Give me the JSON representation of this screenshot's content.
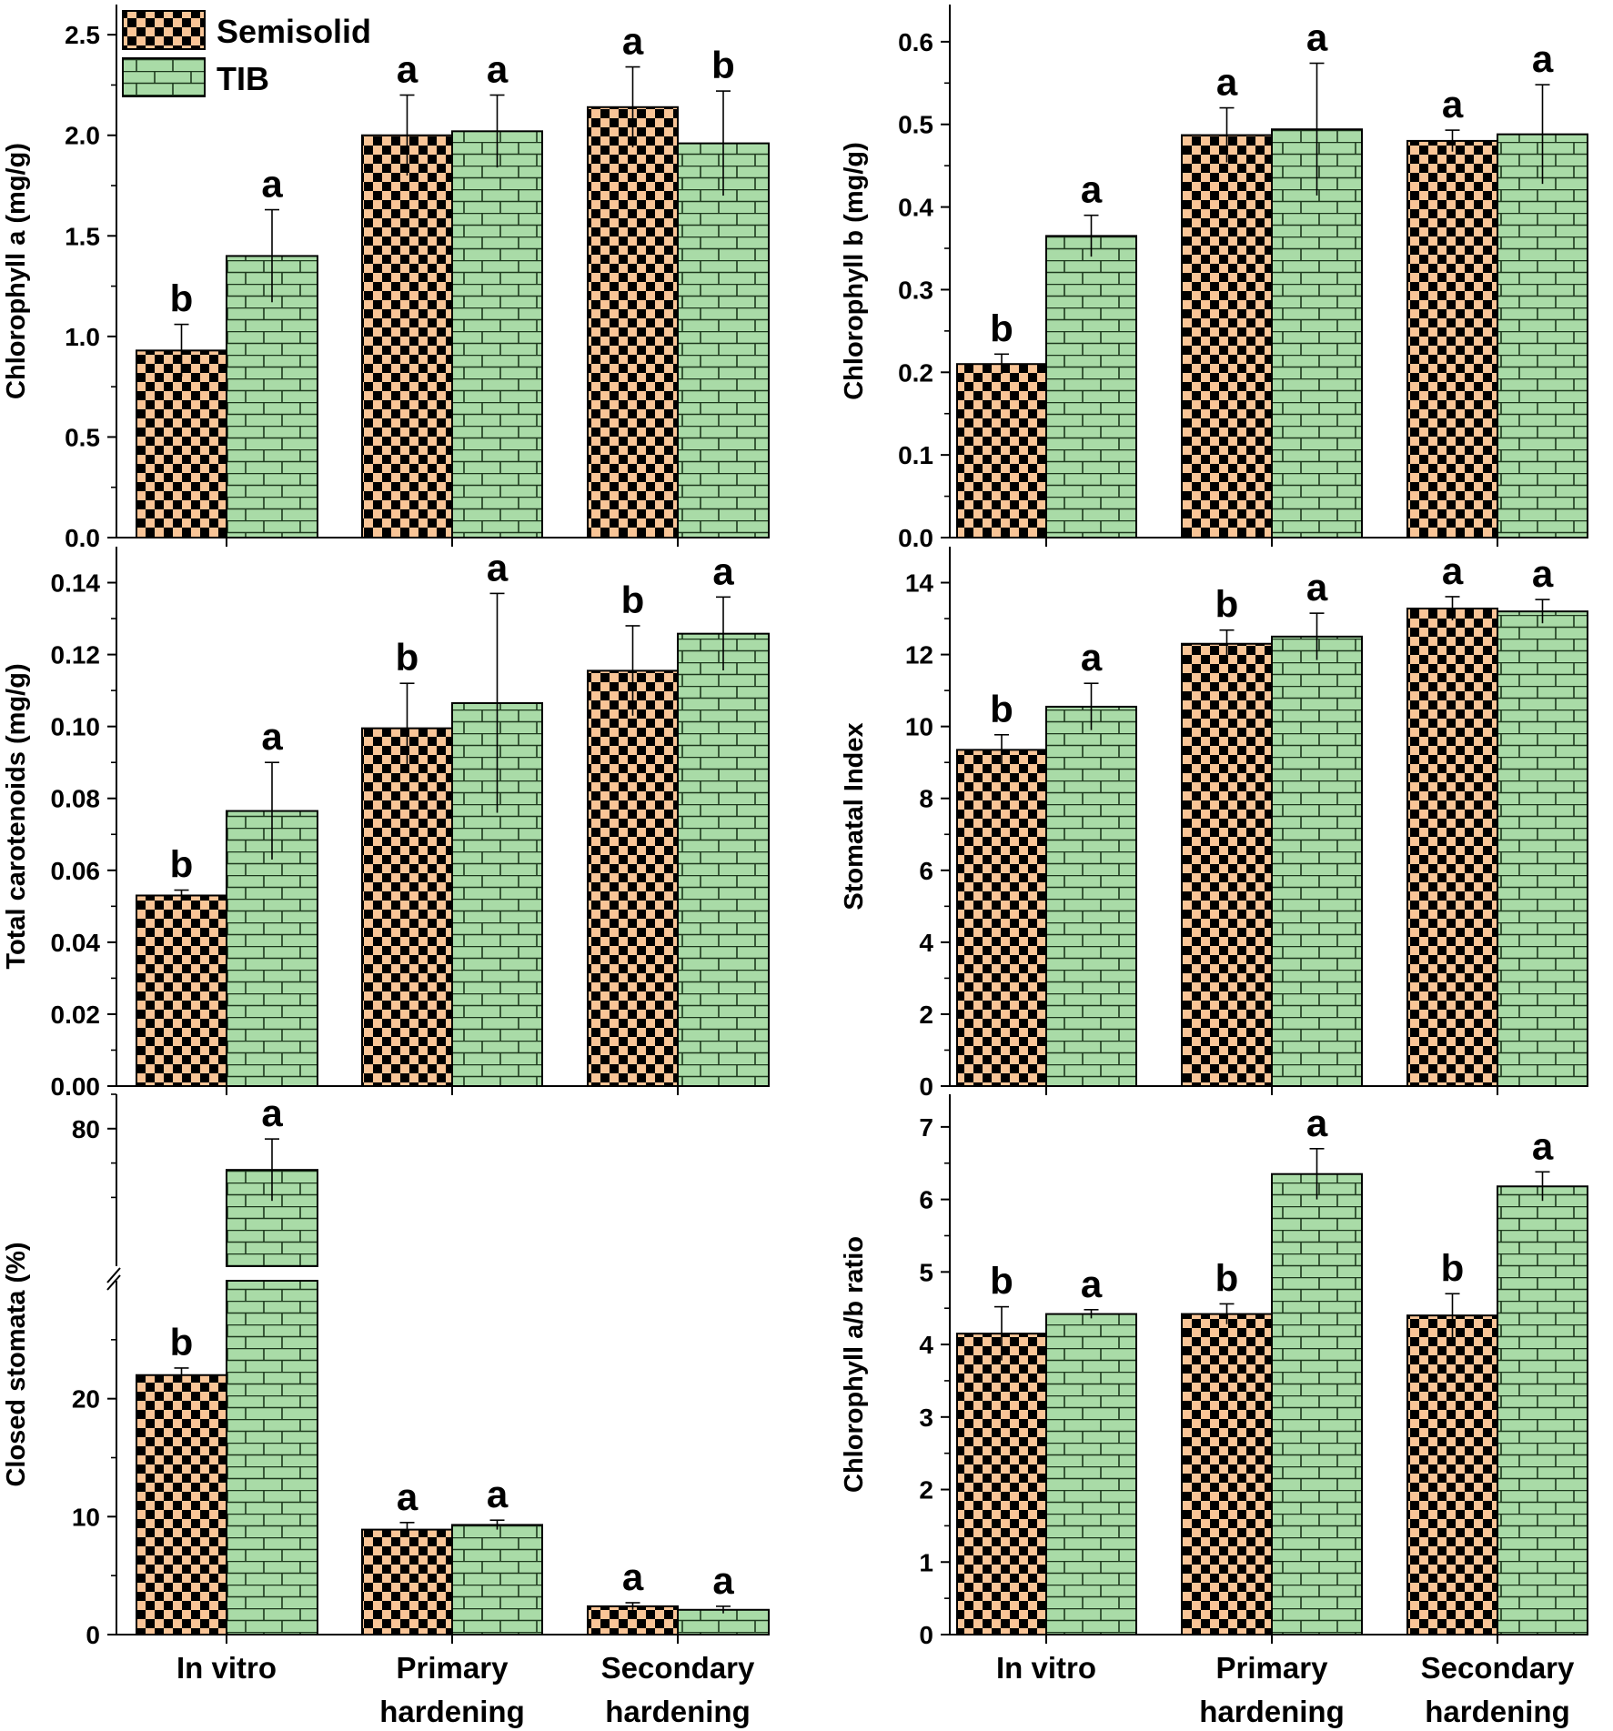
{
  "colors": {
    "semisolid_fill": "#F9C597",
    "tib_fill": "#A9DBA7",
    "check": "#000000",
    "brick_line": "#1E3A1E",
    "axis": "#000000"
  },
  "legend": [
    {
      "name": "Semisolid",
      "pattern": "checker"
    },
    {
      "name": "TIB",
      "pattern": "brick"
    }
  ],
  "category_labels": [
    {
      "line1": "In vitro",
      "line2": ""
    },
    {
      "line1": "Primary",
      "line2": "hardening"
    },
    {
      "line1": "Secondary",
      "line2": "hardening"
    }
  ],
  "chart_data": [
    {
      "type": "bar",
      "title": "",
      "ylabel": "Chlorophyll a (mg/g)",
      "categories": [
        "In vitro",
        "Primary hardening",
        "Secondary hardening"
      ],
      "ylim": [
        0,
        2.65
      ],
      "yticks": [
        0.0,
        0.5,
        1.0,
        1.5,
        2.0,
        2.5
      ],
      "tick_labels": [
        "0.0",
        "0.5",
        "1.0",
        "1.5",
        "2.0",
        "2.5"
      ],
      "series": [
        {
          "name": "Semisolid",
          "values": [
            0.93,
            2.0,
            2.14
          ],
          "errors": [
            0.13,
            0.2,
            0.2
          ],
          "letters": [
            "b",
            "a",
            "a"
          ]
        },
        {
          "name": "TIB",
          "values": [
            1.4,
            2.02,
            1.96
          ],
          "errors": [
            0.23,
            0.18,
            0.26
          ],
          "letters": [
            "a",
            "a",
            "b"
          ]
        }
      ]
    },
    {
      "type": "bar",
      "title": "",
      "ylabel": "Chlorophyll b (mg/g)",
      "categories": [
        "In vitro",
        "Primary hardening",
        "Secondary hardening"
      ],
      "ylim": [
        0,
        0.645
      ],
      "yticks": [
        0.0,
        0.1,
        0.2,
        0.3,
        0.4,
        0.5,
        0.6
      ],
      "tick_labels": [
        "0.0",
        "0.1",
        "0.2",
        "0.3",
        "0.4",
        "0.5",
        "0.6"
      ],
      "series": [
        {
          "name": "Semisolid",
          "values": [
            0.21,
            0.487,
            0.48
          ],
          "errors": [
            0.012,
            0.033,
            0.013
          ],
          "letters": [
            "b",
            "a",
            "a"
          ]
        },
        {
          "name": "TIB",
          "values": [
            0.365,
            0.494,
            0.488
          ],
          "errors": [
            0.025,
            0.08,
            0.06
          ],
          "letters": [
            "a",
            "a",
            "a"
          ]
        }
      ]
    },
    {
      "type": "bar",
      "title": "",
      "ylabel": "Total carotenoids (mg/g)",
      "categories": [
        "In vitro",
        "Primary hardening",
        "Secondary hardening"
      ],
      "ylim": [
        0,
        0.15
      ],
      "yticks": [
        0.0,
        0.02,
        0.04,
        0.06,
        0.08,
        0.1,
        0.12,
        0.14
      ],
      "tick_labels": [
        "0.00",
        "0.02",
        "0.04",
        "0.06",
        "0.08",
        "0.10",
        "0.12",
        "0.14"
      ],
      "series": [
        {
          "name": "Semisolid",
          "values": [
            0.053,
            0.0995,
            0.1155
          ],
          "errors": [
            0.0015,
            0.0125,
            0.0125
          ],
          "letters": [
            "b",
            "b",
            "b"
          ]
        },
        {
          "name": "TIB",
          "values": [
            0.0765,
            0.1065,
            0.1258
          ],
          "errors": [
            0.0135,
            0.0305,
            0.0102
          ],
          "letters": [
            "a",
            "a",
            "a"
          ]
        }
      ]
    },
    {
      "type": "bar",
      "title": "",
      "ylabel": "Stomatal Index",
      "categories": [
        "In vitro",
        "Primary hardening",
        "Secondary hardening"
      ],
      "ylim": [
        0,
        15
      ],
      "yticks": [
        0,
        2,
        4,
        6,
        8,
        10,
        12,
        14
      ],
      "tick_labels": [
        "0",
        "2",
        "4",
        "6",
        "8",
        "10",
        "12",
        "14"
      ],
      "series": [
        {
          "name": "Semisolid",
          "values": [
            9.35,
            12.3,
            13.28
          ],
          "errors": [
            0.42,
            0.38,
            0.33
          ],
          "letters": [
            "b",
            "b",
            "a"
          ]
        },
        {
          "name": "TIB",
          "values": [
            10.55,
            12.5,
            13.2
          ],
          "errors": [
            0.65,
            0.65,
            0.33
          ],
          "letters": [
            "a",
            "a",
            "a"
          ]
        }
      ]
    },
    {
      "type": "bar",
      "title": "",
      "ylabel": "Closed stomata (%)",
      "categories": [
        "In vitro",
        "Primary hardening",
        "Secondary hardening"
      ],
      "axis_break": {
        "lower": 30,
        "upper": 60
      },
      "ylim_lower": [
        0,
        30
      ],
      "ylim_upper": [
        60,
        85
      ],
      "yticks": [
        10,
        20,
        80
      ],
      "tick_labels": [
        "0",
        "10",
        "20",
        "80"
      ],
      "zero_label": "0",
      "series": [
        {
          "name": "Semisolid",
          "values": [
            22.0,
            8.9,
            2.4
          ],
          "errors": [
            0.6,
            0.6,
            0.3
          ],
          "letters": [
            "b",
            "a",
            "a"
          ]
        },
        {
          "name": "TIB",
          "values": [
            74.0,
            9.3,
            2.1
          ],
          "errors": [
            4.5,
            0.4,
            0.3
          ],
          "letters": [
            "a",
            "a",
            "a"
          ]
        }
      ]
    },
    {
      "type": "bar",
      "title": "",
      "ylabel": "Chlorophyll a/b ratio",
      "categories": [
        "In vitro",
        "Primary hardening",
        "Secondary hardening"
      ],
      "ylim": [
        0,
        7.45
      ],
      "yticks": [
        0,
        1,
        2,
        3,
        4,
        5,
        6,
        7
      ],
      "tick_labels": [
        "0",
        "1",
        "2",
        "3",
        "4",
        "5",
        "6",
        "7"
      ],
      "series": [
        {
          "name": "Semisolid",
          "values": [
            4.15,
            4.42,
            4.4
          ],
          "errors": [
            0.37,
            0.14,
            0.3
          ],
          "letters": [
            "b",
            "b",
            "b"
          ]
        },
        {
          "name": "TIB",
          "values": [
            4.42,
            6.35,
            6.18
          ],
          "errors": [
            0.06,
            0.35,
            0.2
          ],
          "letters": [
            "a",
            "a",
            "a"
          ]
        }
      ]
    }
  ]
}
